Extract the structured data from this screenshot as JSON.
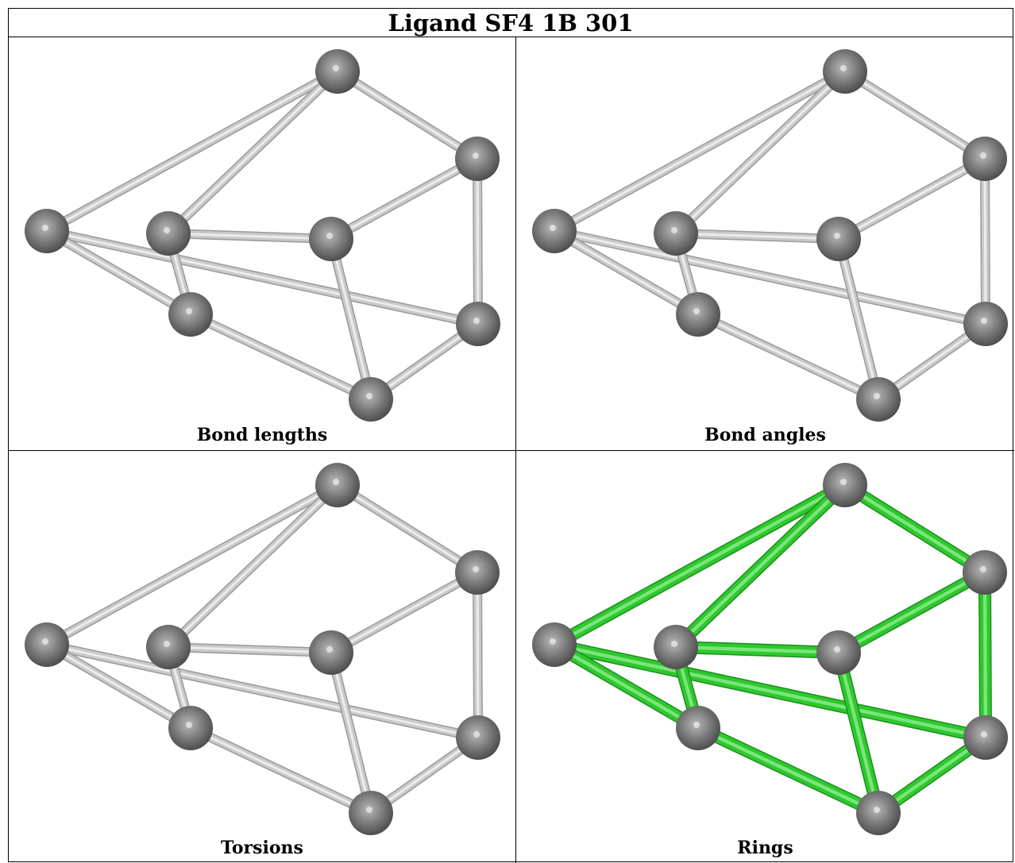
{
  "title": "Ligand SF4 1B 301",
  "panels": [
    {
      "caption": "Bond lengths",
      "bond_color": "#c9c9c9",
      "highlight": false
    },
    {
      "caption": "Bond angles",
      "bond_color": "#c9c9c9",
      "highlight": false
    },
    {
      "caption": "Torsions",
      "bond_color": "#c9c9c9",
      "highlight": false
    },
    {
      "caption": "Rings",
      "bond_color": "#2fc82f",
      "highlight": true
    }
  ],
  "colors": {
    "atom": "#7a7a7a",
    "bond_default": "#c9c9c9",
    "bond_ring": "#2fc82f"
  }
}
